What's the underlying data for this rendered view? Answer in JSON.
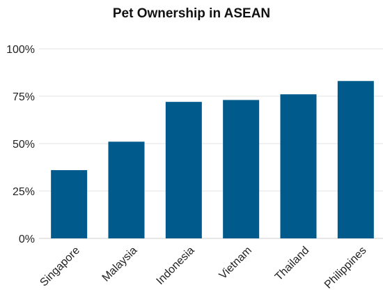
{
  "chart_data": {
    "type": "bar",
    "title": "Pet Ownership in ASEAN",
    "xlabel": "",
    "ylabel": "",
    "categories": [
      "Singapore",
      "Malaysia",
      "Indonesia",
      "Vietnam",
      "Thailand",
      "Philippines"
    ],
    "values": [
      36,
      51,
      72,
      73,
      76,
      83
    ],
    "ylim": [
      0,
      100
    ],
    "yticks": [
      0,
      25,
      50,
      75,
      100
    ],
    "ytick_labels": [
      "0%",
      "25%",
      "50%",
      "75%",
      "100%"
    ],
    "grid": true,
    "legend": "none",
    "bar_color": "#005a8c"
  }
}
